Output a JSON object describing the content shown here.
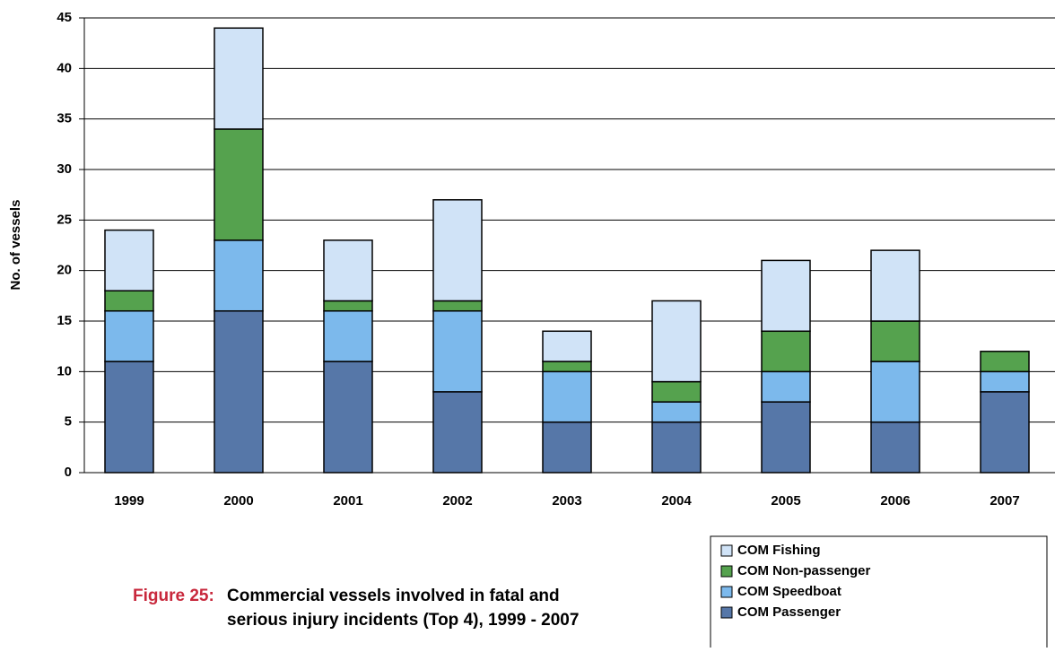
{
  "chart_data": {
    "type": "stacked-bar",
    "y_label": "No. of vessels",
    "categories": [
      "1999",
      "2000",
      "2001",
      "2002",
      "2003",
      "2004",
      "2005",
      "2006",
      "2007"
    ],
    "series": [
      {
        "name": "COM Passenger",
        "color": "#5677a8",
        "values": [
          11,
          16,
          11,
          8,
          5,
          5,
          7,
          5,
          8
        ]
      },
      {
        "name": "COM Speedboat",
        "color": "#7cb9ec",
        "values": [
          5,
          7,
          5,
          8,
          5,
          2,
          3,
          6,
          2
        ]
      },
      {
        "name": "COM Non-passenger",
        "color": "#55a24e",
        "values": [
          2,
          11,
          1,
          1,
          1,
          2,
          4,
          4,
          2
        ]
      },
      {
        "name": "COM Fishing",
        "color": "#d0e3f7",
        "values": [
          6,
          10,
          6,
          10,
          3,
          8,
          7,
          7,
          0
        ]
      }
    ],
    "ylim": [
      0,
      45
    ],
    "yticks": [
      0,
      5,
      10,
      15,
      20,
      25,
      30,
      35,
      40,
      45
    ],
    "grid": true
  },
  "caption": {
    "label": "Figure 25:",
    "lines": [
      "Commercial vessels involved in fatal and",
      "serious injury incidents (Top 4), 1999 - 2007"
    ]
  }
}
